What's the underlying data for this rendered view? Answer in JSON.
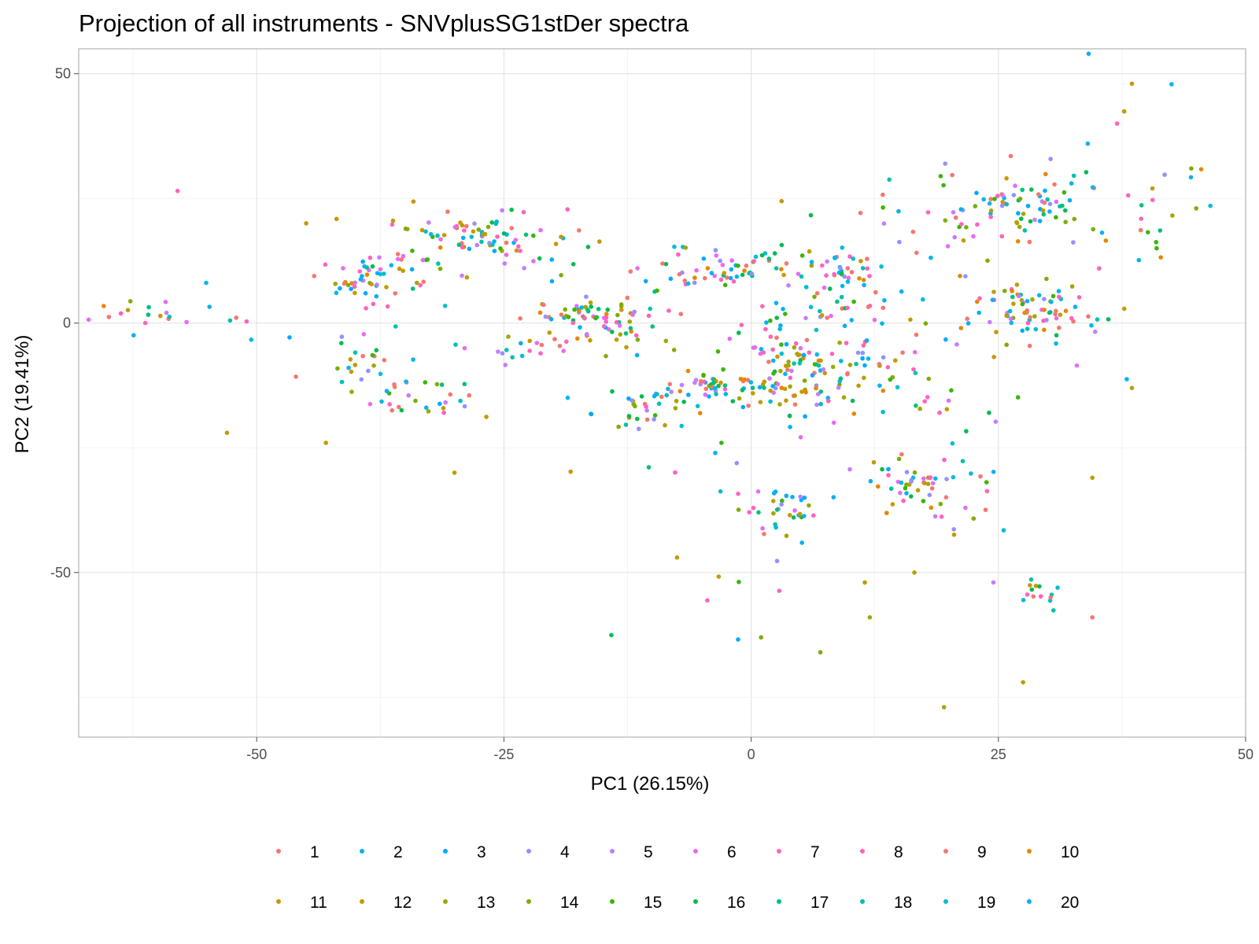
{
  "chart_data": {
    "type": "scatter",
    "title": "Projection of all instruments - SNVplusSG1stDer spectra",
    "xlabel": "PC1 (26.15%)",
    "ylabel": "PC2 (19.41%)",
    "xlim": [
      -68,
      50
    ],
    "ylim": [
      -83,
      55
    ],
    "x_ticks": [
      -50,
      -25,
      0,
      25,
      50
    ],
    "y_ticks": [
      -50,
      0,
      50
    ],
    "x_tick_labels": [
      "-50",
      "-25",
      "0",
      "25",
      "50"
    ],
    "y_tick_labels": [
      "-50",
      "0",
      "50"
    ],
    "grid": true,
    "legend_position": "bottom",
    "legend": [
      "1",
      "2",
      "3",
      "4",
      "5",
      "6",
      "7",
      "8",
      "9",
      "10",
      "11",
      "12",
      "13",
      "14",
      "15",
      "16",
      "17",
      "18",
      "19",
      "20"
    ],
    "colors": [
      "#F8766D",
      "#00B4F0",
      "#00A9FF",
      "#9590FF",
      "#C77CFF",
      "#E76BF3",
      "#FF61C3",
      "#FF62BC",
      "#F8766D",
      "#E58700",
      "#C99800",
      "#C09B00",
      "#A3A500",
      "#7CAE00",
      "#39B600",
      "#00BB4E",
      "#00BF7D",
      "#00C0AF",
      "#00BCD8",
      "#00B0F6"
    ],
    "clusters": [
      {
        "cx": -62,
        "cy": 2,
        "sx": 2.5,
        "sy": 2.5,
        "n": 14
      },
      {
        "cx": -54,
        "cy": 2,
        "sx": 3.0,
        "sy": 3.0,
        "n": 8
      },
      {
        "cx": -38,
        "cy": 9,
        "sx": 3.5,
        "sy": 2.5,
        "n": 60
      },
      {
        "cx": -28,
        "cy": 18,
        "sx": 4.0,
        "sy": 2.5,
        "n": 70
      },
      {
        "cx": -39,
        "cy": -9,
        "sx": 3.0,
        "sy": 3.0,
        "n": 30
      },
      {
        "cx": -32,
        "cy": -15,
        "sx": 3.0,
        "sy": 3.0,
        "n": 22
      },
      {
        "cx": -24,
        "cy": -5,
        "sx": 3.0,
        "sy": 1.5,
        "n": 18
      },
      {
        "cx": -18,
        "cy": 1,
        "sx": 2.5,
        "sy": 2.5,
        "n": 55
      },
      {
        "cx": -12,
        "cy": -2,
        "sx": 3.0,
        "sy": 3.0,
        "n": 25
      },
      {
        "cx": -6,
        "cy": 10,
        "sx": 4.0,
        "sy": 2.5,
        "n": 45
      },
      {
        "cx": 2,
        "cy": 12,
        "sx": 3.0,
        "sy": 2.0,
        "n": 25
      },
      {
        "cx": -10,
        "cy": -17,
        "sx": 3.0,
        "sy": 2.0,
        "n": 35
      },
      {
        "cx": -4,
        "cy": -12,
        "sx": 2.5,
        "sy": 2.0,
        "n": 50
      },
      {
        "cx": 2,
        "cy": -5,
        "sx": 3.0,
        "sy": 4.0,
        "n": 40
      },
      {
        "cx": 6,
        "cy": -10,
        "sx": 3.0,
        "sy": 3.0,
        "n": 45
      },
      {
        "cx": 4,
        "cy": -15,
        "sx": 3.0,
        "sy": 2.0,
        "n": 25
      },
      {
        "cx": 10,
        "cy": 10,
        "sx": 2.5,
        "sy": 2.5,
        "n": 40
      },
      {
        "cx": 8,
        "cy": 2,
        "sx": 3.0,
        "sy": 3.0,
        "n": 20
      },
      {
        "cx": 12,
        "cy": -8,
        "sx": 2.5,
        "sy": 2.5,
        "n": 20
      },
      {
        "cx": 17,
        "cy": -14,
        "sx": 2.5,
        "sy": 2.5,
        "n": 15
      },
      {
        "cx": 3,
        "cy": -38,
        "sx": 2.5,
        "sy": 3.0,
        "n": 35
      },
      {
        "cx": 17,
        "cy": -32,
        "sx": 3.0,
        "sy": 2.5,
        "n": 45
      },
      {
        "cx": 22,
        "cy": -38,
        "sx": 2.5,
        "sy": 2.0,
        "n": 12
      },
      {
        "cx": 26,
        "cy": 23,
        "sx": 4.0,
        "sy": 4.0,
        "n": 85
      },
      {
        "cx": 29,
        "cy": 2,
        "sx": 3.5,
        "sy": 3.0,
        "n": 75
      },
      {
        "cx": 29,
        "cy": -54,
        "sx": 1.5,
        "sy": 1.5,
        "n": 14
      },
      {
        "cx": 37,
        "cy": 20,
        "sx": 5.0,
        "sy": 14.0,
        "n": 22
      },
      {
        "cx": 41,
        "cy": 20,
        "sx": 3.0,
        "sy": 10.0,
        "n": 8
      },
      {
        "cx": 20,
        "cy": 5,
        "sx": 5.0,
        "sy": 6.0,
        "n": 15
      },
      {
        "cx": 15,
        "cy": 20,
        "sx": 5.0,
        "sy": 5.0,
        "n": 10
      },
      {
        "cx": 0,
        "cy": -60,
        "sx": 6.0,
        "sy": 8.0,
        "n": 6
      },
      {
        "cx": -20,
        "cy": 15,
        "sx": 4.0,
        "sy": 4.0,
        "n": 15
      },
      {
        "cx": -8,
        "cy": -30,
        "sx": 4.0,
        "sy": 4.0,
        "n": 8
      },
      {
        "cx": 25,
        "cy": -15,
        "sx": 8.0,
        "sy": 6.0,
        "n": 10
      }
    ],
    "points": [
      {
        "x": -58,
        "y": 26.5,
        "s": 7
      },
      {
        "x": -45,
        "y": 20,
        "s": 11
      },
      {
        "x": -53,
        "y": -22,
        "s": 12
      },
      {
        "x": -30,
        "y": -30,
        "s": 12
      },
      {
        "x": -43,
        "y": -24,
        "s": 12
      },
      {
        "x": 38.5,
        "y": 48,
        "s": 11
      },
      {
        "x": 37,
        "y": 40,
        "s": 8
      },
      {
        "x": 44.5,
        "y": 31,
        "s": 14
      },
      {
        "x": 45,
        "y": 23,
        "s": 14
      },
      {
        "x": 41,
        "y": 15,
        "s": 15
      },
      {
        "x": 38.5,
        "y": -13,
        "s": 12
      },
      {
        "x": 34.5,
        "y": -31,
        "s": 12
      },
      {
        "x": 34.5,
        "y": -59,
        "s": 9
      },
      {
        "x": 27.5,
        "y": -72,
        "s": 12
      },
      {
        "x": 19.5,
        "y": -77,
        "s": 13
      },
      {
        "x": 7,
        "y": -66,
        "s": 14
      },
      {
        "x": 1,
        "y": -63,
        "s": 14
      },
      {
        "x": -7.5,
        "y": -47,
        "s": 12
      },
      {
        "x": 11.5,
        "y": -52,
        "s": 12
      },
      {
        "x": 12,
        "y": -59,
        "s": 13
      },
      {
        "x": 16.5,
        "y": -50,
        "s": 12
      },
      {
        "x": 24.5,
        "y": -52,
        "s": 5
      },
      {
        "x": -11.5,
        "y": 11,
        "s": 6
      },
      {
        "x": -3,
        "y": -24,
        "s": 15
      }
    ]
  }
}
